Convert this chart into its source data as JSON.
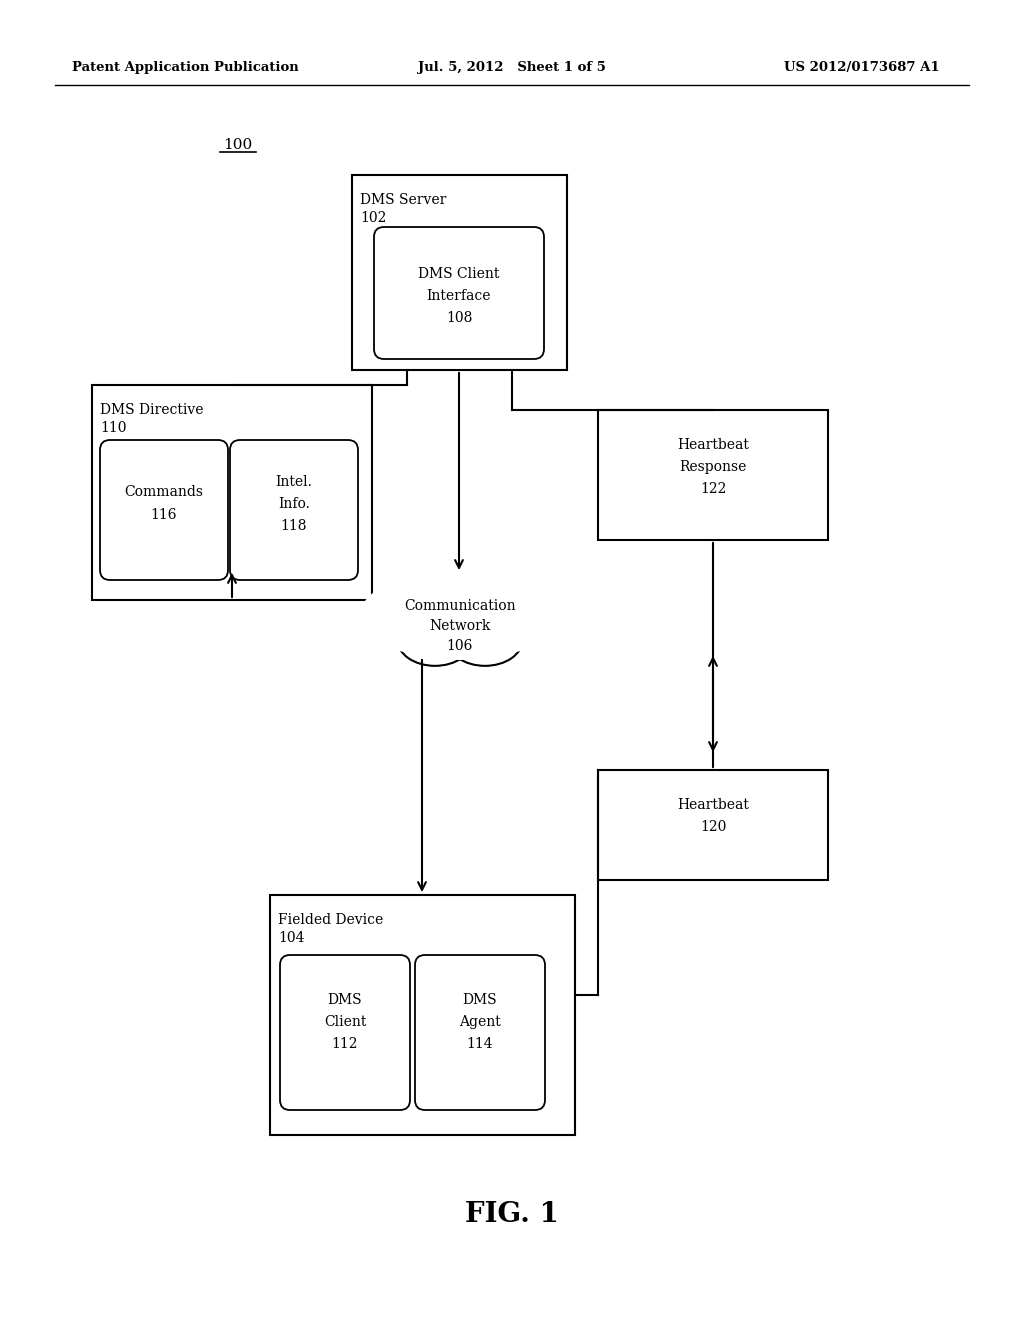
{
  "background_color": "#ffffff",
  "header_left": "Patent Application Publication",
  "header_mid": "Jul. 5, 2012   Sheet 1 of 5",
  "header_right": "US 2012/0173687 A1",
  "fig_label": "FIG. 1",
  "diagram_label": "100"
}
